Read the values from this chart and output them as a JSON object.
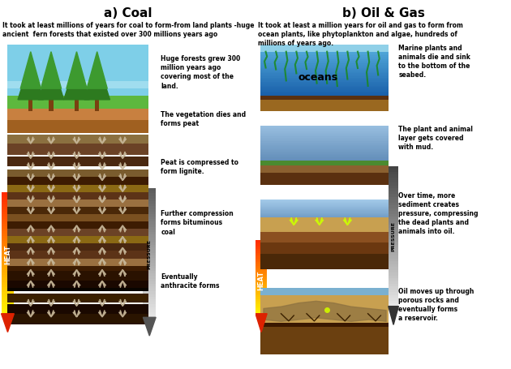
{
  "title_a": "a) Coal",
  "title_b": "b) Oil & Gas",
  "desc_a": "It took at least millions of years for coal to form-from land plants -huge\nancient  fern forests that existed over 300 millions years ago",
  "desc_b": "It took at least a million years for oil and gas to form from\nocean plants, like phytoplankton and algae, hundreds of\nmillions of years ago.",
  "coal_labels": [
    "Huge forests grew 300\nmillion years ago\ncovering most of the\nland.",
    "The vegetation dies and\nforms peat",
    "Peat is compressed to\nform lignite.",
    "Further compression\nforms bituminous\ncoal",
    "Eventually\nanthracite forms"
  ],
  "oil_labels": [
    "Marine plants and\nanimals die and sink\nto the bottom of the\nseabed.",
    "The plant and animal\nlayer gets covered\nwith mud.",
    "Over time, more\nsediment creates\npressure, compressing\nthe dead plants and\nanimals into oil.",
    "Oil moves up through\nporous rocks and\neventually forms\na reservoir."
  ],
  "ocean_label": "oceans",
  "heat_label": "HEAT",
  "pressure_label": "PRESSURE",
  "bg_color": "#ffffff"
}
